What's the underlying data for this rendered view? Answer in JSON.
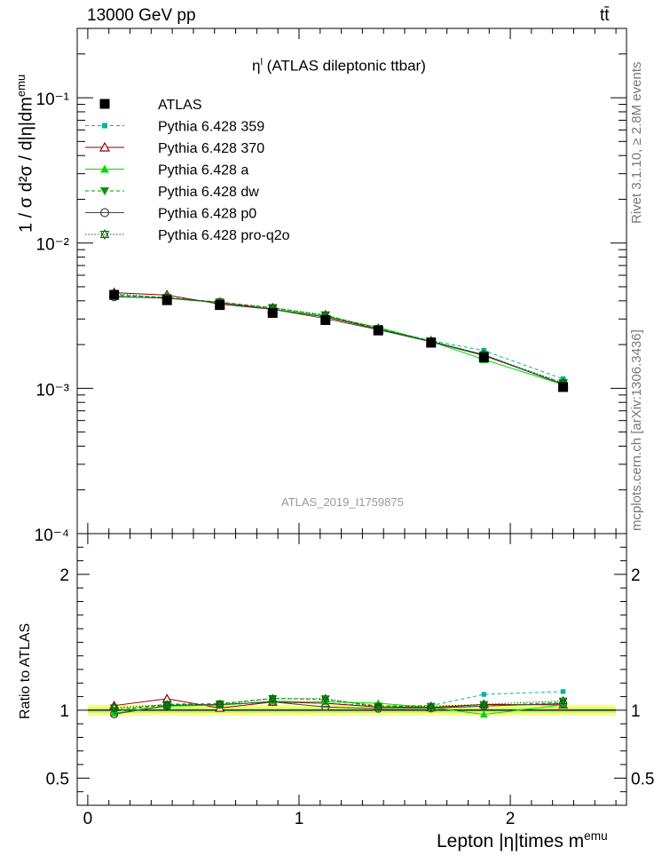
{
  "header": {
    "energy_label": "13000 GeV pp",
    "process_label": "tt̄"
  },
  "side_labels": {
    "rivet": "Rivet 3.1.10, ≥ 2.8M events",
    "source": "mcplots.cern.ch [arXiv:1306.3436]"
  },
  "plot": {
    "title_prefix": "η",
    "title_sup": "l",
    "title_suffix": " (ATLAS dileptonic ttbar)",
    "reference": "ATLAS_2019_I1759875",
    "ylabel_main": "1 / σ  d²σ / d|η|dm",
    "ylabel_main_sup": "emu",
    "ylabel_ratio": "Ratio to ATLAS",
    "xlabel": "Lepton |η|times m",
    "xlabel_sup": "emu"
  },
  "chart_data": {
    "type": "scatter",
    "x_scale": "linear",
    "y_scale": "log",
    "xlim": [
      -0.05,
      2.55
    ],
    "ylim": [
      0.0001,
      0.3
    ],
    "ratio_ylim": [
      0.3,
      2.3
    ],
    "legend_position": "top-left",
    "x": [
      0.125,
      0.375,
      0.625,
      0.875,
      1.125,
      1.375,
      1.625,
      1.875,
      2.25
    ],
    "x_ticks": [
      "0",
      "1",
      "2"
    ],
    "y_ticks": [
      "10⁻⁴",
      "10⁻³",
      "10⁻²",
      "10⁻¹"
    ],
    "ratio_ticks": [
      "0.5",
      "1",
      "2"
    ],
    "series": [
      {
        "name": "ATLAS",
        "color": "#000000",
        "marker": "square",
        "line": "none",
        "values": [
          0.0044,
          0.00404,
          0.00374,
          0.0033,
          0.00295,
          0.0025,
          0.00206,
          0.00163,
          0.00102
        ]
      },
      {
        "name": "Pythia 6.428 359",
        "color": "#00b894",
        "marker": "small-square",
        "line": "dashed",
        "values": [
          0.00436,
          0.0042,
          0.00388,
          0.0035,
          0.0031,
          0.00258,
          0.00213,
          0.00182,
          0.00116
        ]
      },
      {
        "name": "Pythia 6.428 370",
        "color": "#8b0000",
        "marker": "open-triangle",
        "line": "solid",
        "values": [
          0.00455,
          0.00438,
          0.0038,
          0.0035,
          0.0031,
          0.00256,
          0.0021,
          0.0017,
          0.00106
        ]
      },
      {
        "name": "Pythia 6.428 a",
        "color": "#00dd00",
        "marker": "triangle",
        "line": "solid",
        "values": [
          0.0043,
          0.00416,
          0.00388,
          0.00352,
          0.00313,
          0.00263,
          0.0021,
          0.00158,
          0.00106
        ]
      },
      {
        "name": "Pythia 6.428 dw",
        "color": "#009900",
        "marker": "down-triangle",
        "line": "dashed",
        "values": [
          0.0044,
          0.00422,
          0.00392,
          0.00359,
          0.00318,
          0.00258,
          0.0021,
          0.00168,
          0.00108
        ]
      },
      {
        "name": "Pythia 6.428 p0",
        "color": "#444444",
        "marker": "open-circle",
        "line": "solid",
        "values": [
          0.00427,
          0.00418,
          0.0039,
          0.0035,
          0.00302,
          0.00253,
          0.00209,
          0.00168,
          0.00107
        ]
      },
      {
        "name": "Pythia 6.428 pro-q2o",
        "color": "#006600",
        "marker": "star",
        "line": "dotted",
        "values": [
          0.00448,
          0.0042,
          0.0039,
          0.00358,
          0.0032,
          0.00256,
          0.00212,
          0.0017,
          0.00109
        ]
      }
    ]
  }
}
